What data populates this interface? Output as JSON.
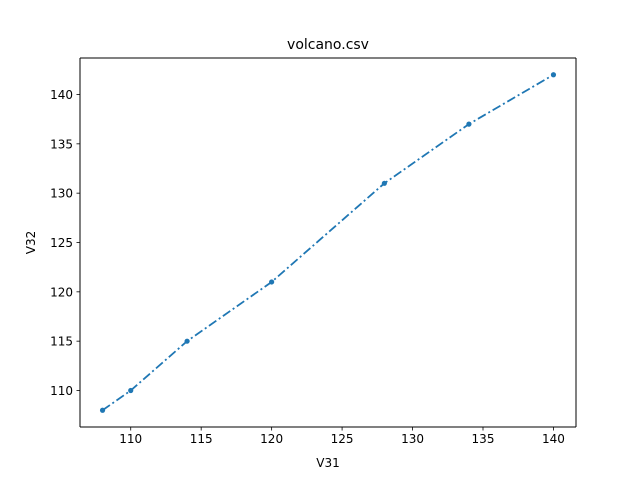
{
  "chart_data": {
    "type": "line",
    "title": "volcano.csv",
    "xlabel": "V31",
    "ylabel": "V32",
    "xlim": [
      106.4,
      141.6
    ],
    "ylim": [
      106.3,
      143.7
    ],
    "xticks": [
      110,
      115,
      120,
      125,
      130,
      135,
      140
    ],
    "yticks": [
      110,
      115,
      120,
      125,
      130,
      135,
      140
    ],
    "grid": false,
    "line_style": "dash-dot",
    "marker": "circle",
    "color": "#1f77b4",
    "series": [
      {
        "x": [
          108,
          110,
          114,
          120,
          128,
          134,
          140
        ],
        "y": [
          108,
          110,
          115,
          121,
          131,
          137,
          142
        ]
      }
    ]
  }
}
